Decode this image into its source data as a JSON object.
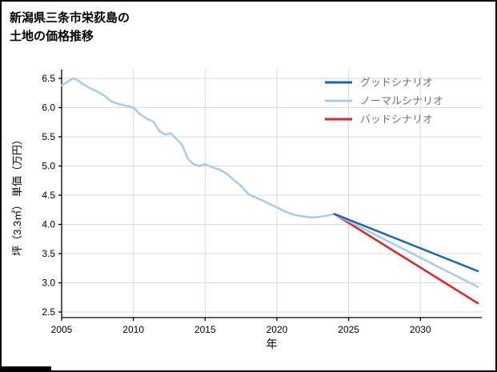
{
  "title": {
    "line1": "新潟県三条市栄荻島の",
    "line2": "土地の価格推移"
  },
  "chart_data": {
    "type": "line",
    "title": "新潟県三条市栄荻島の土地の価格推移",
    "xlabel": "年",
    "ylabel": "坪（3.3㎡） 単価（万円）",
    "xlim": [
      2005,
      2034
    ],
    "ylim": [
      2.5,
      6.5
    ],
    "xticks": [
      2005,
      2010,
      2015,
      2020,
      2025,
      2030
    ],
    "yticks": [
      2.5,
      3.0,
      3.5,
      4.0,
      4.5,
      5.0,
      5.5,
      6.0,
      6.5
    ],
    "grid": true,
    "legend_position": "upper right",
    "colors": {
      "good": "#1565c0",
      "normal": "#a6cbf0",
      "bad": "#e62222",
      "history": "#a6cbf0",
      "grid": "#d9d9d9",
      "axis": "#000000",
      "legend_text": "#737373"
    },
    "series": [
      {
        "id": "history",
        "color_key": "history",
        "x": [
          2005,
          2005.4,
          2005.8,
          2006.1,
          2006.5,
          2007,
          2007.5,
          2008,
          2008.5,
          2009,
          2009.5,
          2010,
          2010.5,
          2011,
          2011.4,
          2011.8,
          2012.2,
          2012.6,
          2013,
          2013.4,
          2013.8,
          2014.2,
          2014.6,
          2015,
          2015.5,
          2016,
          2016.5,
          2017,
          2017.5,
          2018,
          2018.5,
          2019,
          2019.5,
          2020,
          2020.5,
          2021,
          2021.5,
          2022,
          2022.5,
          2023,
          2023.5,
          2024
        ],
        "y": [
          6.38,
          6.44,
          6.5,
          6.47,
          6.4,
          6.33,
          6.27,
          6.2,
          6.1,
          6.06,
          6.03,
          6.0,
          5.88,
          5.8,
          5.76,
          5.6,
          5.54,
          5.56,
          5.46,
          5.36,
          5.12,
          5.03,
          5.0,
          5.03,
          4.98,
          4.94,
          4.87,
          4.76,
          4.66,
          4.52,
          4.46,
          4.41,
          4.35,
          4.29,
          4.23,
          4.18,
          4.15,
          4.13,
          4.12,
          4.13,
          4.15,
          4.18
        ]
      },
      {
        "id": "bad",
        "color_key": "bad",
        "x": [
          2024,
          2034
        ],
        "y": [
          4.18,
          2.65
        ]
      },
      {
        "id": "normal",
        "color_key": "normal",
        "x": [
          2024,
          2034
        ],
        "y": [
          4.18,
          2.93
        ]
      },
      {
        "id": "good",
        "color_key": "good",
        "x": [
          2024,
          2034
        ],
        "y": [
          4.18,
          3.2
        ]
      }
    ],
    "legend": [
      {
        "id": "good",
        "label": "グッドシナリオ",
        "color_key": "good"
      },
      {
        "id": "normal",
        "label": "ノーマルシナリオ",
        "color_key": "normal"
      },
      {
        "id": "bad",
        "label": "バッドシナリオ",
        "color_key": "bad"
      }
    ]
  }
}
